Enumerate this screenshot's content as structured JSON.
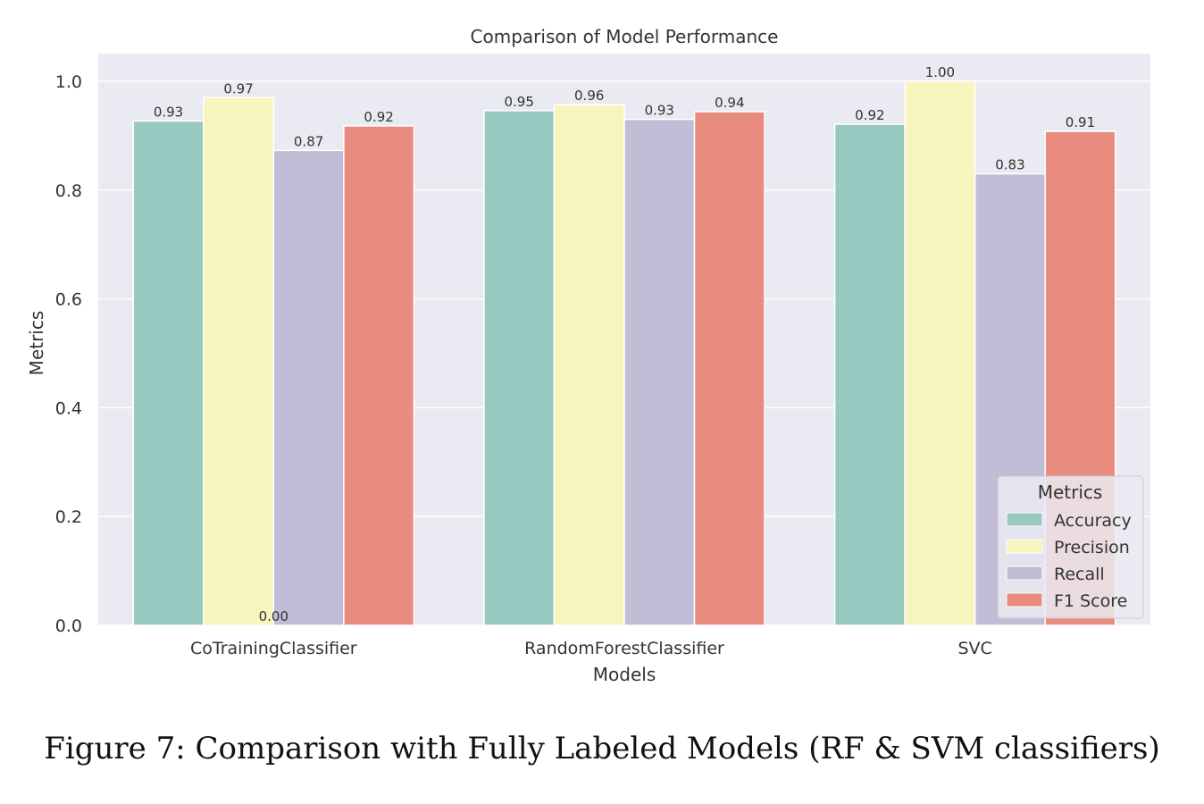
{
  "caption": "Figure 7: Comparison with Fully Labeled Models (RF & SVM classifiers)",
  "chart_data": {
    "type": "bar",
    "title": "Comparison of Model Performance",
    "xlabel": "Models",
    "ylabel": "Metrics",
    "categories": [
      "CoTrainingClassifier",
      "RandomForestClassifier",
      "SVC"
    ],
    "series": [
      {
        "name": "Accuracy",
        "color": "#98c9c1",
        "values": [
          0.927,
          0.946,
          0.921
        ],
        "labels": [
          "0.93",
          "0.95",
          "0.92"
        ]
      },
      {
        "name": "Precision",
        "color": "#f5f5bd",
        "values": [
          0.97,
          0.957,
          1.0
        ],
        "labels": [
          "0.97",
          "0.96",
          "1.00"
        ]
      },
      {
        "name": "Recall",
        "color": "#c1bdd6",
        "values": [
          0.873,
          0.93,
          0.83
        ],
        "labels": [
          "0.87",
          "0.93",
          "0.83"
        ]
      },
      {
        "name": "F1 Score",
        "color": "#e98c80",
        "values": [
          0.918,
          0.944,
          0.908
        ],
        "labels": [
          "0.92",
          "0.94",
          "0.91"
        ]
      }
    ],
    "extra_labels": [
      {
        "category_index": 0,
        "value": 0.0,
        "text": "0.00"
      }
    ],
    "ylim": [
      0,
      1.05
    ],
    "yticks": [
      0.0,
      0.2,
      0.4,
      0.6,
      0.8,
      1.0
    ],
    "ytick_labels": [
      "0.0",
      "0.2",
      "0.4",
      "0.6",
      "0.8",
      "1.0"
    ],
    "grid": true,
    "background": "#eaeaf2",
    "legend": {
      "title": "Metrics",
      "placement": "lower-right"
    }
  }
}
